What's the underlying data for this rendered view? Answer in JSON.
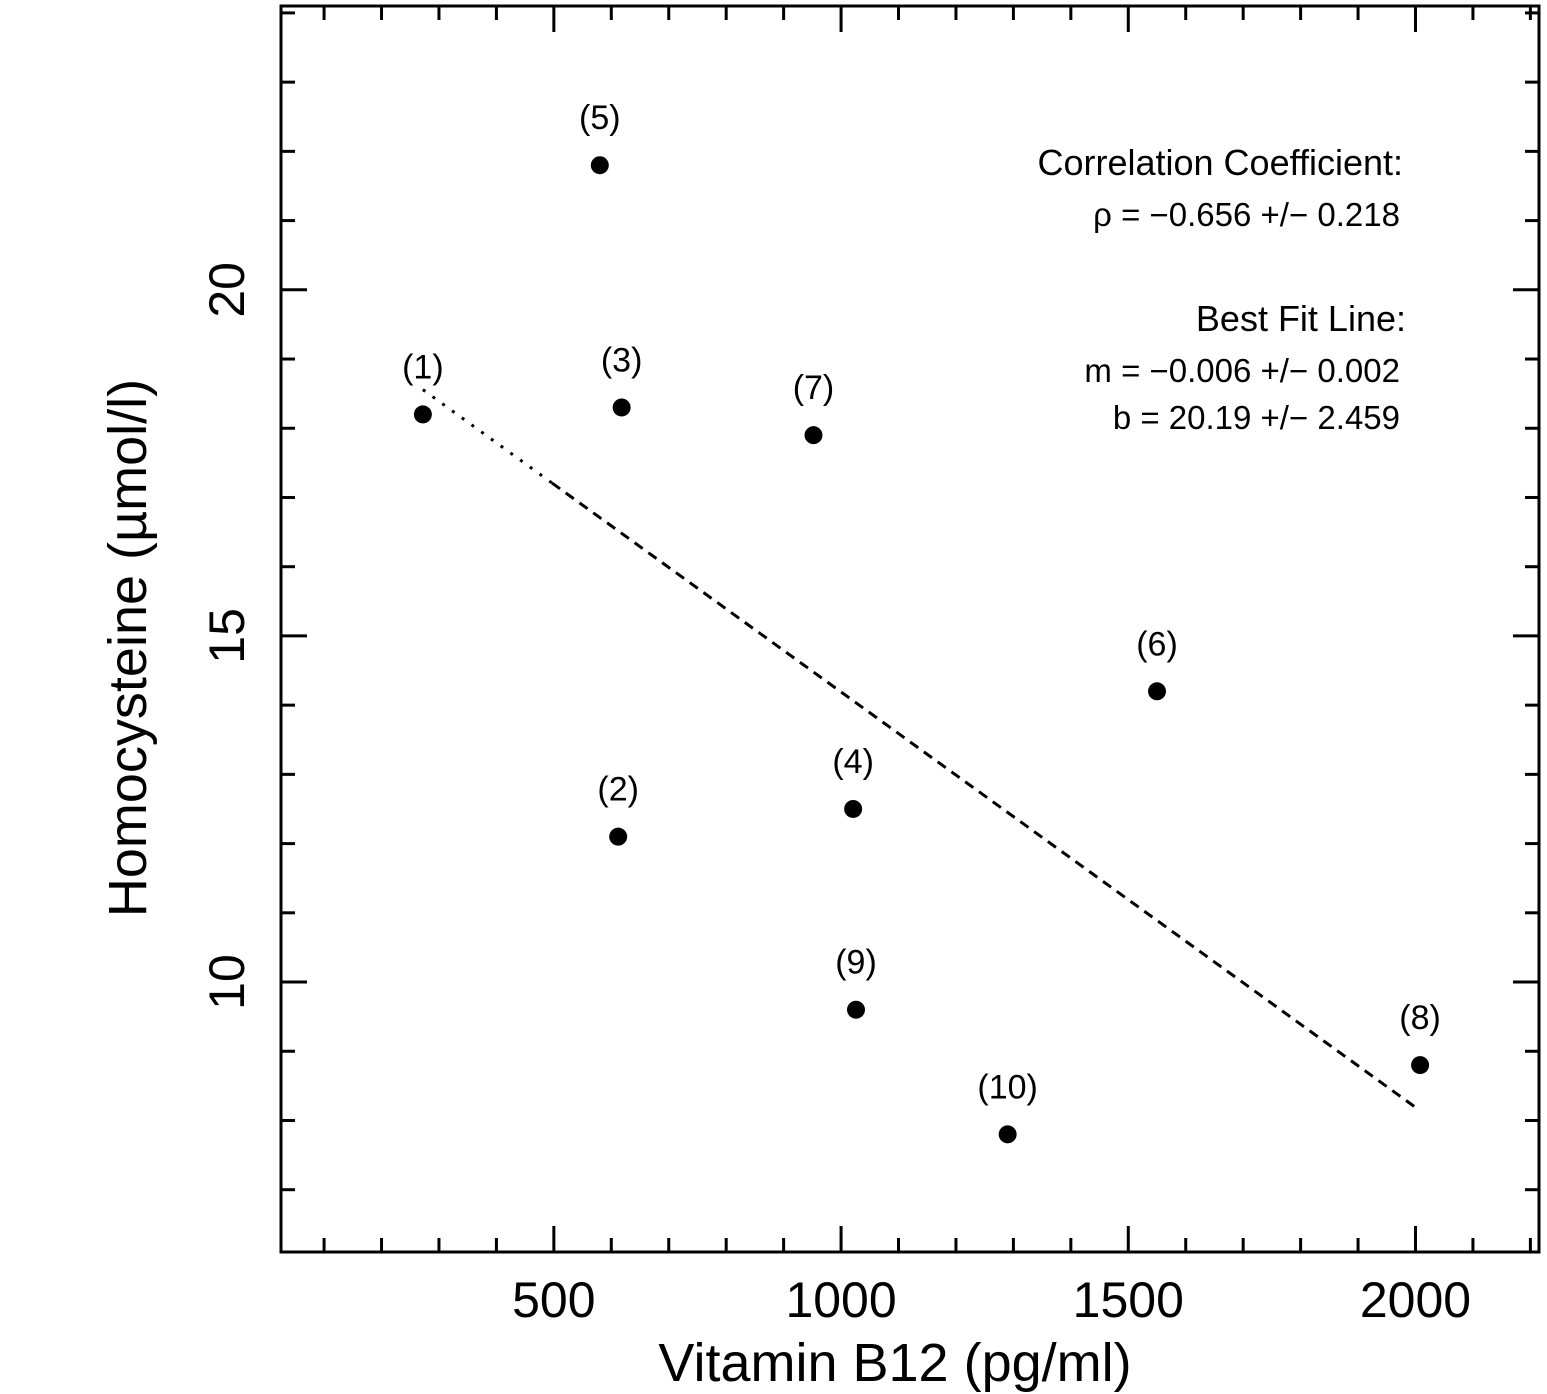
{
  "chart_data": {
    "type": "scatter",
    "title": "",
    "xlabel": "Vitamin B12 (pg/ml)",
    "ylabel": "Homocysteine (µmol/l)",
    "xlim": [
      25,
      2215
    ],
    "ylim": [
      6.1,
      24.1
    ],
    "x_ticks": [
      500,
      1000,
      1500,
      2000
    ],
    "x_tick_labels": [
      "500",
      "1000",
      "1500",
      "2000"
    ],
    "x_minor_step": 100,
    "y_ticks": [
      10,
      15,
      20
    ],
    "y_tick_labels": [
      "10",
      "15",
      "20"
    ],
    "y_minor_step": 1,
    "grid": false,
    "points": [
      {
        "label": "(1)",
        "x": 272,
        "y": 18.2
      },
      {
        "label": "(2)",
        "x": 612,
        "y": 12.1
      },
      {
        "label": "(3)",
        "x": 618,
        "y": 18.3
      },
      {
        "label": "(4)",
        "x": 1021,
        "y": 12.5
      },
      {
        "label": "(5)",
        "x": 580,
        "y": 21.8
      },
      {
        "label": "(6)",
        "x": 1550,
        "y": 14.2
      },
      {
        "label": "(7)",
        "x": 952,
        "y": 17.9
      },
      {
        "label": "(8)",
        "x": 2008,
        "y": 8.8
      },
      {
        "label": "(9)",
        "x": 1026,
        "y": 9.6
      },
      {
        "label": "(10)",
        "x": 1290,
        "y": 7.8
      }
    ],
    "fit_line": {
      "x_start": 272,
      "x_end": 2000,
      "style": "dashed"
    },
    "annotations": {
      "corr_heading": "Correlation Coefficient:",
      "corr_value": "ρ = −0.656 +/− 0.218",
      "fit_heading": "Best Fit Line:",
      "slope": "m = −0.006 +/− 0.002",
      "intercept": "b = 20.19 +/− 2.459"
    }
  }
}
